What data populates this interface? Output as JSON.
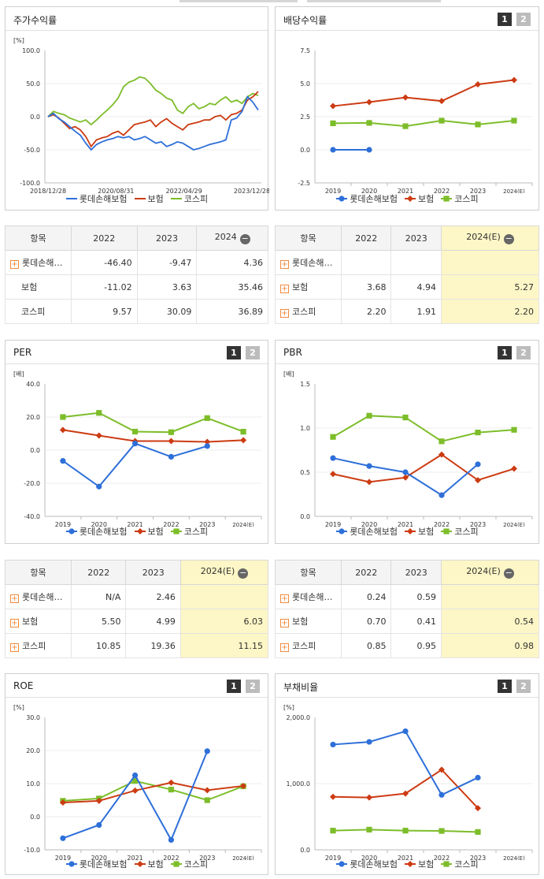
{
  "legend": {
    "lotte": "롯데손해보험",
    "insurance": "보험",
    "kospi": "코스피"
  },
  "colors": {
    "lotte": "#2e6fd9",
    "insurance": "#cc3b12",
    "kospi": "#7dbd2a"
  },
  "table_header": {
    "item": "항목"
  },
  "page_buttons": [
    "1",
    "2"
  ],
  "panels": {
    "stock": {
      "title": "주가수익률",
      "unit": "[%]",
      "table": {
        "columns": [
          "2022",
          "2023",
          "2024"
        ],
        "rows": [
          {
            "name": "롯데손해…",
            "values": [
              "-46.40",
              "-9.47",
              "4.36"
            ]
          },
          {
            "name": "보험",
            "values": [
              "-11.02",
              "3.63",
              "35.46"
            ]
          },
          {
            "name": "코스피",
            "values": [
              "9.57",
              "30.09",
              "36.89"
            ]
          }
        ]
      }
    },
    "dividend": {
      "title": "배당수익률",
      "unit": "",
      "table": {
        "columns": [
          "2022",
          "2023",
          "2024(E)"
        ],
        "rows": [
          {
            "name": "롯데손해…",
            "values": [
              "",
              "",
              ""
            ]
          },
          {
            "name": "보험",
            "values": [
              "3.68",
              "4.94",
              "5.27"
            ]
          },
          {
            "name": "코스피",
            "values": [
              "2.20",
              "1.91",
              "2.20"
            ]
          }
        ]
      }
    },
    "per": {
      "title": "PER",
      "unit": "[배]",
      "table": {
        "columns": [
          "2022",
          "2023",
          "2024(E)"
        ],
        "rows": [
          {
            "name": "롯데손해…",
            "values": [
              "N/A",
              "2.46",
              ""
            ]
          },
          {
            "name": "보험",
            "values": [
              "5.50",
              "4.99",
              "6.03"
            ]
          },
          {
            "name": "코스피",
            "values": [
              "10.85",
              "19.36",
              "11.15"
            ]
          }
        ]
      }
    },
    "pbr": {
      "title": "PBR",
      "unit": "[배]",
      "table": {
        "columns": [
          "2022",
          "2023",
          "2024(E)"
        ],
        "rows": [
          {
            "name": "롯데손해…",
            "values": [
              "0.24",
              "0.59",
              ""
            ]
          },
          {
            "name": "보험",
            "values": [
              "0.70",
              "0.41",
              "0.54"
            ]
          },
          {
            "name": "코스피",
            "values": [
              "0.85",
              "0.95",
              "0.98"
            ]
          }
        ]
      }
    },
    "roe": {
      "title": "ROE",
      "unit": "[%]"
    },
    "debt": {
      "title": "부채비율",
      "unit": "[%]"
    }
  },
  "chart_data": [
    {
      "id": "stock",
      "type": "line",
      "x_ticks": [
        "2018/12/28",
        "2020/08/31",
        "2022/04/29",
        "2023/12/28"
      ],
      "y_ticks": [
        "100.0",
        "50.0",
        "0.0",
        "-50.0",
        "-100.0"
      ],
      "ylim": [
        -100,
        100
      ],
      "series": [
        {
          "name": "롯데손해보험",
          "values": [
            0,
            5,
            -3,
            -8,
            -15,
            -22,
            -28,
            -40,
            -50,
            -42,
            -38,
            -35,
            -33,
            -30,
            -32,
            -30,
            -35,
            -33,
            -30,
            -35,
            -40,
            -38,
            -45,
            -42,
            -38,
            -40,
            -45,
            -50,
            -48,
            -45,
            -42,
            -40,
            -38,
            -35,
            -5,
            -2,
            8,
            30,
            22,
            10
          ]
        },
        {
          "name": "보험",
          "values": [
            0,
            3,
            -2,
            -10,
            -18,
            -15,
            -20,
            -30,
            -45,
            -35,
            -32,
            -30,
            -25,
            -22,
            -28,
            -20,
            -12,
            -10,
            -8,
            -5,
            -15,
            -8,
            -3,
            -10,
            -15,
            -20,
            -12,
            -10,
            -8,
            -5,
            -5,
            0,
            2,
            -5,
            3,
            5,
            10,
            25,
            30,
            38
          ]
        },
        {
          "name": "코스피",
          "values": [
            0,
            8,
            5,
            3,
            -2,
            -5,
            -8,
            -5,
            -12,
            -5,
            3,
            10,
            18,
            28,
            45,
            52,
            55,
            60,
            58,
            50,
            40,
            35,
            28,
            25,
            10,
            5,
            15,
            20,
            12,
            15,
            20,
            18,
            25,
            30,
            22,
            25,
            20,
            30,
            35,
            32
          ]
        }
      ]
    },
    {
      "id": "dividend",
      "type": "line",
      "categories": [
        "2019",
        "2020",
        "2021",
        "2022",
        "2023",
        "2024(E)"
      ],
      "y_ticks": [
        "7.5",
        "5.0",
        "2.5",
        "0.0",
        "-2.5"
      ],
      "ylim": [
        -2.5,
        7.5
      ],
      "series": [
        {
          "name": "롯데손해보험",
          "values": [
            0.0,
            0.0,
            null,
            null,
            null,
            null
          ]
        },
        {
          "name": "보험",
          "values": [
            3.3,
            3.6,
            3.95,
            3.68,
            4.94,
            5.27
          ]
        },
        {
          "name": "코스피",
          "values": [
            2.0,
            2.03,
            1.78,
            2.2,
            1.91,
            2.2
          ]
        }
      ]
    },
    {
      "id": "per",
      "type": "line",
      "categories": [
        "2019",
        "2020",
        "2021",
        "2022",
        "2023",
        "2024(E)"
      ],
      "y_ticks": [
        "40.0",
        "20.0",
        "0.0",
        "-20.0",
        "-40.0"
      ],
      "ylim": [
        -40,
        40
      ],
      "series": [
        {
          "name": "롯데손해보험",
          "values": [
            -6.5,
            -22.0,
            4.0,
            -4.0,
            2.46,
            null
          ]
        },
        {
          "name": "보험",
          "values": [
            12.2,
            8.8,
            5.5,
            5.5,
            4.99,
            6.03
          ]
        },
        {
          "name": "코스피",
          "values": [
            20.0,
            22.5,
            11.2,
            10.85,
            19.36,
            11.15
          ]
        }
      ]
    },
    {
      "id": "pbr",
      "type": "line",
      "categories": [
        "2019",
        "2020",
        "2021",
        "2022",
        "2023",
        "2024(E)"
      ],
      "y_ticks": [
        "1.5",
        "1.0",
        "0.5",
        "0.0"
      ],
      "ylim": [
        0,
        1.5
      ],
      "series": [
        {
          "name": "롯데손해보험",
          "values": [
            0.66,
            0.57,
            0.5,
            0.24,
            0.59,
            null
          ]
        },
        {
          "name": "보험",
          "values": [
            0.48,
            0.39,
            0.44,
            0.7,
            0.41,
            0.54
          ]
        },
        {
          "name": "코스피",
          "values": [
            0.9,
            1.14,
            1.12,
            0.85,
            0.95,
            0.98
          ]
        }
      ]
    },
    {
      "id": "roe",
      "type": "line",
      "categories": [
        "2019",
        "2020",
        "2021",
        "2022",
        "2023",
        "2024(E)"
      ],
      "y_ticks": [
        "30.0",
        "20.0",
        "10.0",
        "0.0",
        "-10.0"
      ],
      "ylim": [
        -10,
        30
      ],
      "series": [
        {
          "name": "롯데손해보험",
          "values": [
            -6.5,
            -2.5,
            12.5,
            -7.0,
            19.8,
            null
          ]
        },
        {
          "name": "보험",
          "values": [
            4.3,
            4.8,
            7.9,
            10.3,
            8.0,
            9.3
          ]
        },
        {
          "name": "코스피",
          "values": [
            4.8,
            5.5,
            10.8,
            8.2,
            5.0,
            9.2
          ]
        }
      ]
    },
    {
      "id": "debt",
      "type": "line",
      "categories": [
        "2019",
        "2020",
        "2021",
        "2022",
        "2023",
        "2024(E)"
      ],
      "y_ticks": [
        "2,000.0",
        "1,000.0",
        "0.0"
      ],
      "ylim": [
        0,
        2000
      ],
      "series": [
        {
          "name": "롯데손해보험",
          "values": [
            1590,
            1630,
            1790,
            830,
            1090,
            null
          ]
        },
        {
          "name": "보험",
          "values": [
            800,
            790,
            850,
            1210,
            630,
            null
          ]
        },
        {
          "name": "코스피",
          "values": [
            290,
            305,
            290,
            285,
            270,
            null
          ]
        }
      ]
    }
  ]
}
